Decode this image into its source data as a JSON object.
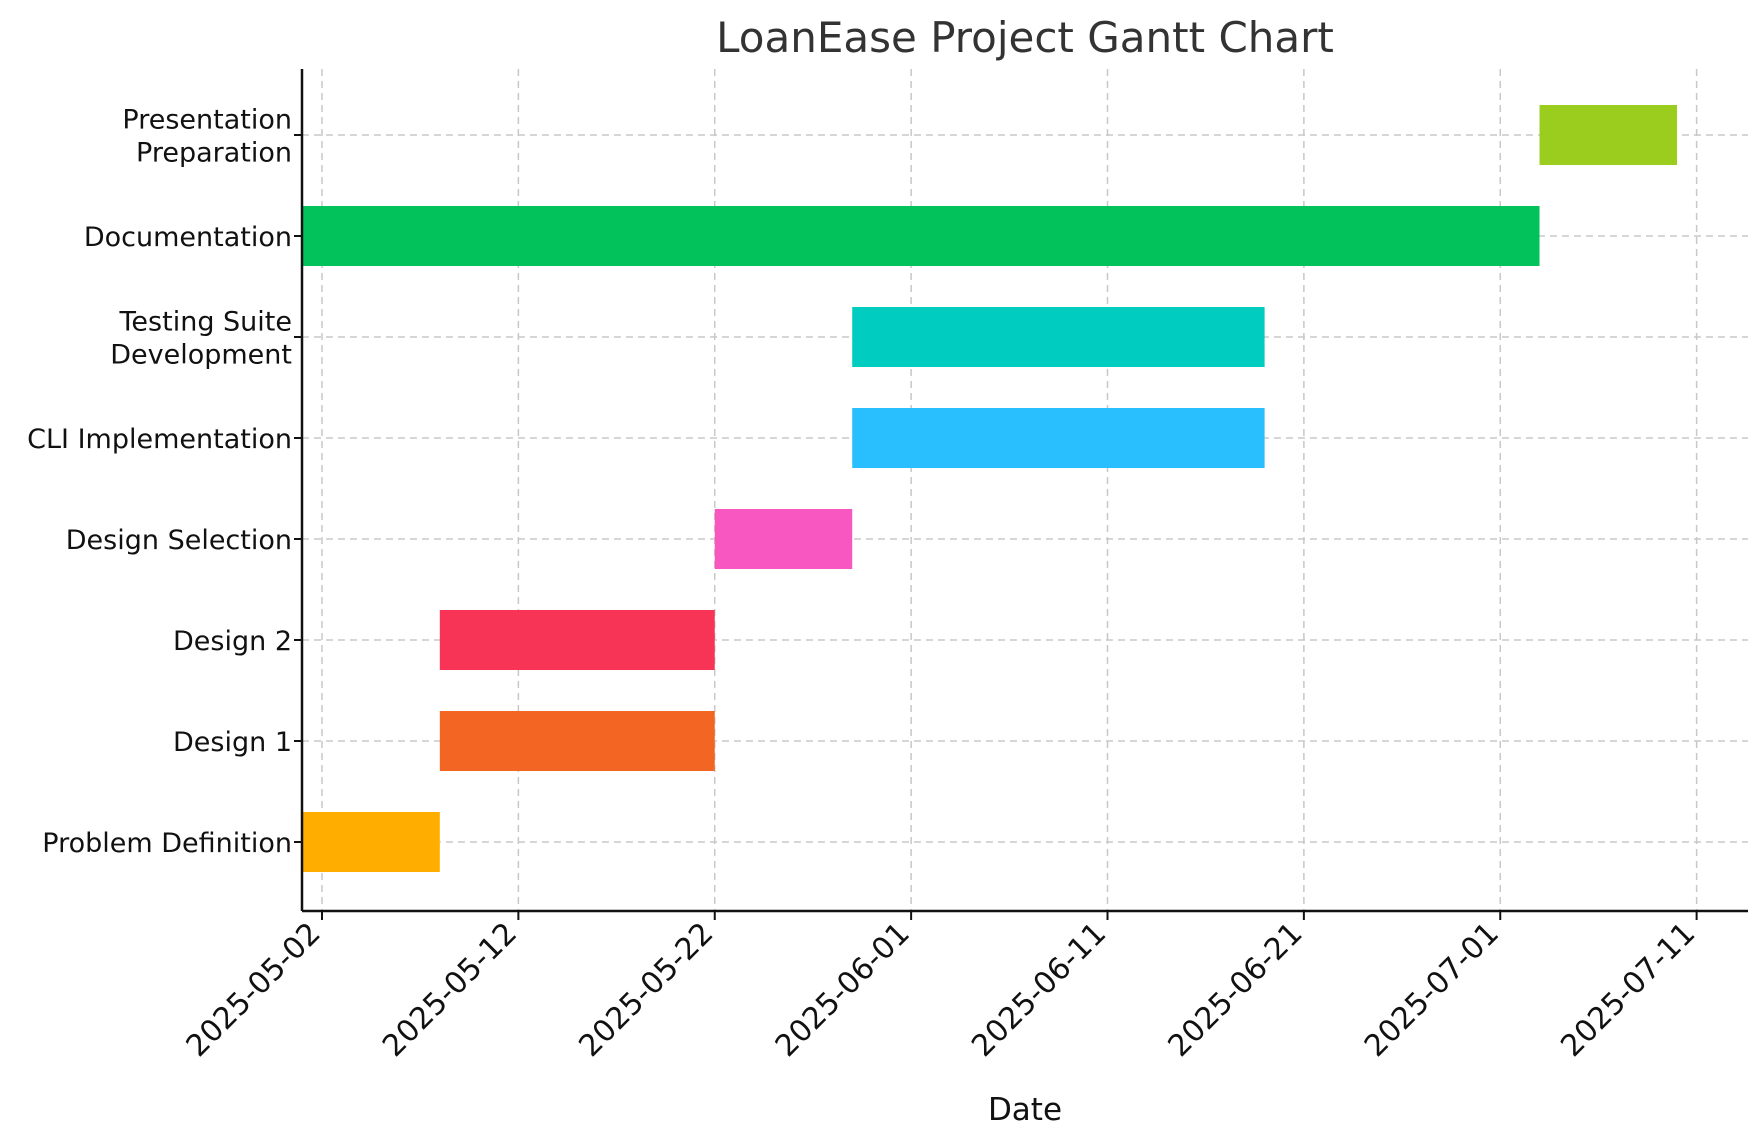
{
  "chart_data": {
    "type": "gantt",
    "title": "LoanEase Project Gantt Chart",
    "xlabel": "Date",
    "ylabel": "",
    "x_range": [
      "2025-04-30",
      "2025-07-13"
    ],
    "x_ticks": [
      "2025-05-02",
      "2025-05-12",
      "2025-05-22",
      "2025-06-01",
      "2025-06-11",
      "2025-06-21",
      "2025-07-01",
      "2025-07-11"
    ],
    "grid": true,
    "tasks": [
      {
        "label_lines": [
          "Problem Definition"
        ],
        "start": "2025-05-01",
        "end": "2025-05-08",
        "color": "#FFAE00"
      },
      {
        "label_lines": [
          "Design 1"
        ],
        "start": "2025-05-08",
        "end": "2025-05-22",
        "color": "#F26522"
      },
      {
        "label_lines": [
          "Design 2"
        ],
        "start": "2025-05-08",
        "end": "2025-05-22",
        "color": "#F73356"
      },
      {
        "label_lines": [
          "Design Selection"
        ],
        "start": "2025-05-22",
        "end": "2025-05-29",
        "color": "#F857C1"
      },
      {
        "label_lines": [
          "CLI Implementation"
        ],
        "start": "2025-05-29",
        "end": "2025-06-19",
        "color": "#29BFFF"
      },
      {
        "label_lines": [
          "Testing Suite",
          "Development"
        ],
        "start": "2025-05-29",
        "end": "2025-06-19",
        "color": "#00CCBF"
      },
      {
        "label_lines": [
          "Documentation"
        ],
        "start": "2025-05-01",
        "end": "2025-07-03",
        "color": "#02C35B"
      },
      {
        "label_lines": [
          "Presentation",
          "Preparation"
        ],
        "start": "2025-07-03",
        "end": "2025-07-10",
        "color": "#9ACD1E"
      }
    ]
  }
}
